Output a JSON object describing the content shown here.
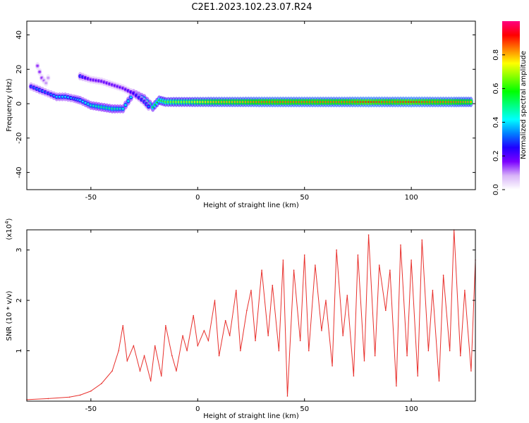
{
  "title": "C2E1.2023.102.23.07.R24",
  "chart_data": [
    {
      "type": "heatmap",
      "xlabel": "Height of straight line (km)",
      "ylabel": "Frequency (Hz)",
      "xlim": [
        -80,
        130
      ],
      "ylim": [
        -50,
        48
      ],
      "xticks": [
        -50,
        0,
        50,
        100
      ],
      "yticks": [
        40,
        20,
        0,
        -20,
        -40
      ],
      "grid": false,
      "colorbar": {
        "label": "Normalized spectral amplitude",
        "range": [
          0.0,
          1.0
        ],
        "ticks": [
          0.0,
          0.2,
          0.4,
          0.6,
          0.8
        ],
        "colormap": [
          "#ffffff",
          "#d8b4f8",
          "#7b00ff",
          "#1f00ff",
          "#0080ff",
          "#00ffff",
          "#00ff80",
          "#00ff00",
          "#80ff00",
          "#ffff00",
          "#ff8000",
          "#ff0000",
          "#ff0080"
        ]
      },
      "series": [
        {
          "x": [
            -78,
            -74,
            -70,
            -66,
            -62,
            -58,
            -55,
            -50,
            -45,
            -40,
            -35,
            -30,
            -25,
            -21,
            -18,
            -15,
            -10,
            -5,
            0,
            10,
            20,
            30,
            40,
            50,
            60,
            70,
            80,
            90,
            100,
            110,
            120,
            129
          ],
          "y": [
            10,
            8,
            6,
            4,
            4,
            3,
            2,
            -1,
            -2,
            -3,
            -3,
            6,
            3,
            -2,
            2,
            1,
            1,
            1,
            1,
            1,
            1,
            1,
            1,
            1,
            1,
            1,
            1,
            1,
            1,
            1,
            1,
            1
          ],
          "amplitude": [
            0.3,
            0.35,
            0.3,
            0.4,
            0.4,
            0.35,
            0.4,
            0.45,
            0.5,
            0.5,
            0.45,
            0.4,
            0.45,
            0.55,
            0.6,
            0.65,
            0.7,
            0.7,
            0.75,
            0.8,
            0.8,
            0.85,
            0.85,
            0.85,
            0.85,
            0.85,
            0.9,
            0.85,
            0.9,
            0.85,
            0.85,
            0.8
          ]
        },
        {
          "x": [
            -55,
            -50,
            -45,
            -40,
            -35,
            -30,
            -25,
            -22
          ],
          "y": [
            16,
            14,
            13,
            11,
            9,
            6,
            1,
            -3
          ],
          "amplitude": [
            0.3,
            0.2,
            0.2,
            0.2,
            0.2,
            0.25,
            0.3,
            0.35
          ]
        },
        {
          "x": [
            -75,
            -73,
            -71,
            -69
          ],
          "y": [
            22,
            15,
            12,
            18
          ],
          "amplitude": [
            0.15,
            0.15,
            0.1,
            0.1
          ]
        }
      ]
    },
    {
      "type": "line",
      "xlabel": "Height of straight line (km)",
      "ylabel": "SNR (10 * v/v)",
      "scale_label": "(x10",
      "scale_exp": "4",
      "scale_close": ")",
      "xlim": [
        -80,
        130
      ],
      "ylim": [
        0,
        3.4
      ],
      "xticks": [
        -50,
        0,
        50,
        100
      ],
      "yticks": [
        1,
        2,
        3
      ],
      "grid": false,
      "series": [
        {
          "color": "#e8302c",
          "x": [
            -80,
            -70,
            -60,
            -55,
            -50,
            -45,
            -40,
            -37,
            -35,
            -33,
            -30,
            -27,
            -25,
            -22,
            -20,
            -17,
            -15,
            -12,
            -10,
            -7,
            -5,
            -2,
            0,
            3,
            5,
            8,
            10,
            13,
            15,
            18,
            20,
            23,
            25,
            27,
            30,
            33,
            35,
            38,
            40,
            42,
            45,
            48,
            50,
            52,
            55,
            58,
            60,
            63,
            65,
            68,
            70,
            73,
            75,
            78,
            80,
            83,
            85,
            88,
            90,
            93,
            95,
            98,
            100,
            103,
            105,
            108,
            110,
            113,
            115,
            118,
            120,
            123,
            125,
            128,
            130
          ],
          "y": [
            0.03,
            0.05,
            0.08,
            0.12,
            0.2,
            0.35,
            0.6,
            1.0,
            1.5,
            0.8,
            1.1,
            0.6,
            0.9,
            0.4,
            1.1,
            0.5,
            1.5,
            0.9,
            0.6,
            1.3,
            1.0,
            1.7,
            1.1,
            1.4,
            1.2,
            2.0,
            0.9,
            1.6,
            1.3,
            2.2,
            1.0,
            1.8,
            2.2,
            1.2,
            2.6,
            1.3,
            2.3,
            1.0,
            2.8,
            0.1,
            2.6,
            1.2,
            2.9,
            1.0,
            2.7,
            1.4,
            2.0,
            0.7,
            3.0,
            1.3,
            2.1,
            0.5,
            2.9,
            0.8,
            3.3,
            0.9,
            2.7,
            1.8,
            2.6,
            0.3,
            3.1,
            0.9,
            2.8,
            0.5,
            3.2,
            1.0,
            2.2,
            0.4,
            2.5,
            1.0,
            3.4,
            0.9,
            2.2,
            0.6,
            2.8
          ]
        }
      ]
    }
  ]
}
